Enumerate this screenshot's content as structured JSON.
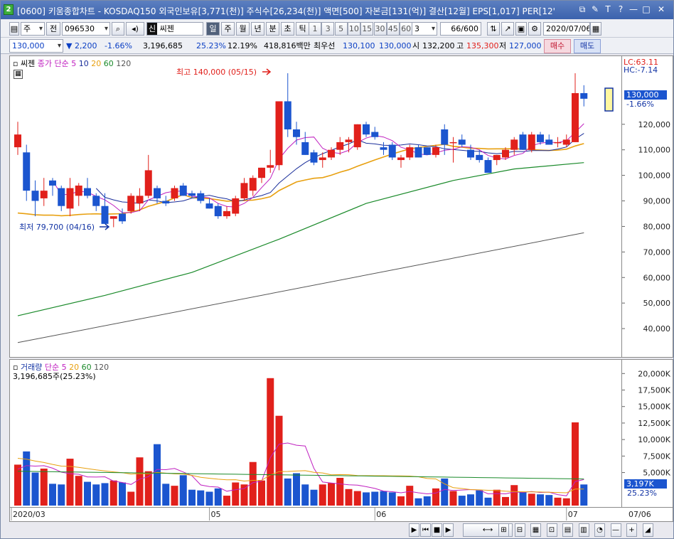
{
  "title": {
    "badge": "2",
    "text": "[0600] 키움종합차트 - KOSDAQ150 외국인보유[3,771(천)] 주식수[26,234(천)] 액면[500] 자본금[131(억)] 결산[12월] EPS[1,017] PER[12'",
    "icons": [
      "window-restore-icon",
      "pin-icon",
      "tile-icon",
      "help-icon",
      "minimize-icon",
      "maximize-icon",
      "close-icon"
    ],
    "icon_glyphs": [
      "⧉",
      "✎",
      "T",
      "?",
      "—",
      "□",
      "✕"
    ]
  },
  "toolbar": {
    "type_value": "주",
    "prefix_button": "전",
    "code_value": "096530",
    "stock_name": "씨젠",
    "stock_name_badge": "신",
    "periods": [
      "일",
      "주",
      "월",
      "년",
      "분",
      "초",
      "틱"
    ],
    "active_period": "일",
    "intervals": [
      "1",
      "3",
      "5",
      "10",
      "15",
      "30",
      "45",
      "60"
    ],
    "interval_value": "3",
    "count_value": "66/600",
    "date_value": "2020/07/06"
  },
  "quote": {
    "price": "130,000",
    "change": "2,200",
    "change_pct": "-1.66%",
    "volume": "3,196,685",
    "volume_ratio": "25.23%",
    "turnover": "12.19%",
    "trade_value": "418,816백만",
    "priority_label": "최우선",
    "ask": "130,100",
    "bid": "130,000",
    "open_label": "시",
    "open": "132,200",
    "high_label": "고",
    "high": "135,300",
    "low_label": "저",
    "low": "127,000",
    "buy_label": "매수",
    "sell_label": "매도"
  },
  "main_legend": {
    "stock": "씨젠",
    "ma_label": "종가 단순",
    "ma_periods": [
      "5",
      "10",
      "20",
      "60",
      "120"
    ],
    "ma_colors": [
      "#c020c0",
      "#1a2e9a",
      "#e8a010",
      "#1a8a2a",
      "#555555"
    ]
  },
  "main_annotations": {
    "high_label": "최고 140,000 (05/15)",
    "low_label": "최저 79,700 (04/16)",
    "lc": "LC:63.11",
    "hc": "HC:-7.14",
    "last_price": "130,000",
    "last_pct": "-1.66%"
  },
  "volume_legend": {
    "title": "거래량",
    "ma_label": "단순",
    "ma_periods": [
      "5",
      "20",
      "60",
      "120"
    ],
    "last_text": "3,196,685주(25.23%)",
    "last_value": "3,197K",
    "last_pct": "25.23%"
  },
  "x_axis": {
    "labels": [
      "2020/03",
      "05",
      "06",
      "07"
    ],
    "right_label": "07/06"
  },
  "chart_data": {
    "type": "candlestick",
    "price_axis": {
      "ticks": [
        40000,
        50000,
        60000,
        70000,
        80000,
        90000,
        100000,
        110000,
        120000
      ],
      "tick_labels": [
        "40,000",
        "50,000",
        "60,000",
        "70,000",
        "80,000",
        "90,000",
        "100,000",
        "110,000",
        "120,000"
      ],
      "ylim": [
        30000,
        145000
      ]
    },
    "volume_axis": {
      "ticks": [
        5000,
        7500,
        10000,
        12500,
        15000,
        17500,
        20000
      ],
      "tick_labels": [
        "5,000K",
        "7,500K",
        "10,000K",
        "12,500K",
        "15,000K",
        "17,500K",
        "20,000K"
      ],
      "ylim": [
        0,
        21000
      ]
    },
    "candles": [
      {
        "o": 111000,
        "h": 121000,
        "l": 108000,
        "c": 116000
      },
      {
        "o": 109000,
        "h": 112000,
        "l": 90000,
        "c": 94000
      },
      {
        "o": 94000,
        "h": 98000,
        "l": 84000,
        "c": 90000
      },
      {
        "o": 91000,
        "h": 99000,
        "l": 88000,
        "c": 94000
      },
      {
        "o": 98000,
        "h": 99000,
        "l": 92000,
        "c": 96000
      },
      {
        "o": 95000,
        "h": 96000,
        "l": 86000,
        "c": 88000
      },
      {
        "o": 87000,
        "h": 99000,
        "l": 84000,
        "c": 95000
      },
      {
        "o": 92000,
        "h": 97000,
        "l": 88000,
        "c": 96000
      },
      {
        "o": 95000,
        "h": 99000,
        "l": 91000,
        "c": 92000
      },
      {
        "o": 92000,
        "h": 93000,
        "l": 86000,
        "c": 88000
      },
      {
        "o": 88000,
        "h": 93000,
        "l": 81000,
        "c": 81000
      },
      {
        "o": 83000,
        "h": 84000,
        "l": 79700,
        "c": 84000
      },
      {
        "o": 85000,
        "h": 87000,
        "l": 81000,
        "c": 82000
      },
      {
        "o": 86000,
        "h": 93000,
        "l": 85000,
        "c": 92000
      },
      {
        "o": 89000,
        "h": 95000,
        "l": 86000,
        "c": 92000
      },
      {
        "o": 92000,
        "h": 108000,
        "l": 91000,
        "c": 102000
      },
      {
        "o": 95000,
        "h": 96000,
        "l": 89000,
        "c": 91000
      },
      {
        "o": 90000,
        "h": 92000,
        "l": 88000,
        "c": 89000
      },
      {
        "o": 91000,
        "h": 96000,
        "l": 90000,
        "c": 95000
      },
      {
        "o": 96000,
        "h": 97000,
        "l": 92000,
        "c": 92000
      },
      {
        "o": 93000,
        "h": 94000,
        "l": 91000,
        "c": 92000
      },
      {
        "o": 93000,
        "h": 94000,
        "l": 89000,
        "c": 90000
      },
      {
        "o": 89000,
        "h": 91000,
        "l": 87000,
        "c": 87000
      },
      {
        "o": 88000,
        "h": 89000,
        "l": 83000,
        "c": 84000
      },
      {
        "o": 84000,
        "h": 88000,
        "l": 83000,
        "c": 86000
      },
      {
        "o": 85000,
        "h": 92000,
        "l": 84000,
        "c": 91000
      },
      {
        "o": 91000,
        "h": 99000,
        "l": 90000,
        "c": 97000
      },
      {
        "o": 94000,
        "h": 100000,
        "l": 92000,
        "c": 99000
      },
      {
        "o": 99000,
        "h": 103000,
        "l": 97000,
        "c": 103000
      },
      {
        "o": 103000,
        "h": 110000,
        "l": 101000,
        "c": 104000
      },
      {
        "o": 104000,
        "h": 129000,
        "l": 102000,
        "c": 129000
      },
      {
        "o": 129000,
        "h": 140000,
        "l": 115000,
        "c": 118000
      },
      {
        "o": 118000,
        "h": 121000,
        "l": 112000,
        "c": 115000
      },
      {
        "o": 113000,
        "h": 117000,
        "l": 108000,
        "c": 108000
      },
      {
        "o": 109000,
        "h": 110000,
        "l": 104000,
        "c": 105000
      },
      {
        "o": 106000,
        "h": 109000,
        "l": 103000,
        "c": 107000
      },
      {
        "o": 107000,
        "h": 111000,
        "l": 106000,
        "c": 110000
      },
      {
        "o": 110000,
        "h": 115000,
        "l": 108000,
        "c": 113000
      },
      {
        "o": 113000,
        "h": 115000,
        "l": 109000,
        "c": 114000
      },
      {
        "o": 111000,
        "h": 120000,
        "l": 110000,
        "c": 120000
      },
      {
        "o": 120000,
        "h": 121000,
        "l": 115000,
        "c": 116000
      },
      {
        "o": 117000,
        "h": 119000,
        "l": 114000,
        "c": 115000
      },
      {
        "o": 111000,
        "h": 113000,
        "l": 108000,
        "c": 110000
      },
      {
        "o": 112000,
        "h": 113000,
        "l": 106000,
        "c": 107000
      },
      {
        "o": 106000,
        "h": 108000,
        "l": 103000,
        "c": 107000
      },
      {
        "o": 107000,
        "h": 112000,
        "l": 106000,
        "c": 111000
      },
      {
        "o": 111000,
        "h": 112000,
        "l": 107000,
        "c": 107000
      },
      {
        "o": 111000,
        "h": 111000,
        "l": 108000,
        "c": 108000
      },
      {
        "o": 108000,
        "h": 112000,
        "l": 107000,
        "c": 111000
      },
      {
        "o": 118000,
        "h": 120000,
        "l": 108000,
        "c": 112000
      },
      {
        "o": 113000,
        "h": 115000,
        "l": 105000,
        "c": 113000
      },
      {
        "o": 114000,
        "h": 116000,
        "l": 111000,
        "c": 112000
      },
      {
        "o": 110000,
        "h": 112000,
        "l": 106000,
        "c": 107000
      },
      {
        "o": 108000,
        "h": 110000,
        "l": 105000,
        "c": 106000
      },
      {
        "o": 106000,
        "h": 107000,
        "l": 101000,
        "c": 101000
      },
      {
        "o": 106000,
        "h": 108000,
        "l": 104000,
        "c": 108000
      },
      {
        "o": 107000,
        "h": 111000,
        "l": 106000,
        "c": 110000
      },
      {
        "o": 110000,
        "h": 115000,
        "l": 108000,
        "c": 114000
      },
      {
        "o": 116000,
        "h": 117000,
        "l": 110000,
        "c": 110000
      },
      {
        "o": 110000,
        "h": 117000,
        "l": 109000,
        "c": 116000
      },
      {
        "o": 116000,
        "h": 117000,
        "l": 112000,
        "c": 113000
      },
      {
        "o": 114000,
        "h": 116000,
        "l": 112000,
        "c": 112000
      },
      {
        "o": 113000,
        "h": 115000,
        "l": 111000,
        "c": 113000
      },
      {
        "o": 112000,
        "h": 116000,
        "l": 111000,
        "c": 114000
      },
      {
        "o": 113000,
        "h": 140000,
        "l": 113000,
        "c": 132200
      },
      {
        "o": 132200,
        "h": 135300,
        "l": 127000,
        "c": 130000
      }
    ],
    "volume": [
      6200,
      8200,
      5000,
      5600,
      3300,
      3200,
      7100,
      4500,
      3600,
      3200,
      3400,
      3800,
      3500,
      2100,
      7300,
      5200,
      9300,
      3300,
      3000,
      4600,
      2400,
      2300,
      2100,
      2600,
      1500,
      3500,
      3200,
      6600,
      3800,
      19300,
      13600,
      4100,
      4900,
      3200,
      2400,
      3200,
      3400,
      4200,
      2500,
      2200,
      2000,
      2100,
      2200,
      2000,
      1400,
      3000,
      1100,
      1400,
      2600,
      4100,
      2200,
      1500,
      1700,
      2300,
      1200,
      2400,
      1300,
      3100,
      2000,
      1800,
      1700,
      1600,
      1200,
      1100,
      12600,
      3197
    ],
    "ma120_points": [
      [
        0,
        34500
      ],
      [
        65,
        77500
      ]
    ],
    "ma60_points": [
      [
        0,
        45000
      ],
      [
        10,
        53000
      ],
      [
        20,
        62000
      ],
      [
        30,
        75000
      ],
      [
        40,
        89000
      ],
      [
        50,
        98000
      ],
      [
        57,
        102500
      ],
      [
        65,
        105000
      ]
    ],
    "series_colors": {
      "up": "#e1201b",
      "down": "#1b55cf"
    }
  },
  "bottom_controls": {
    "glyphs": [
      "▶",
      "⏮",
      "■",
      "▶",
      "⟷",
      "⊞",
      "⊟",
      "▦",
      "⊡",
      "▤",
      "▥",
      "◔",
      "—",
      "+",
      "◢"
    ],
    "names": [
      "play-icon",
      "first-icon",
      "stop-icon",
      "next-icon",
      "scroll-bar",
      "zoom-fit-icon",
      "zoom-view-icon",
      "grid-icon",
      "layout-icon",
      "table-icon",
      "columns-icon",
      "clock-icon",
      "zoom-out-icon",
      "zoom-in-icon",
      "resize-icon"
    ]
  }
}
